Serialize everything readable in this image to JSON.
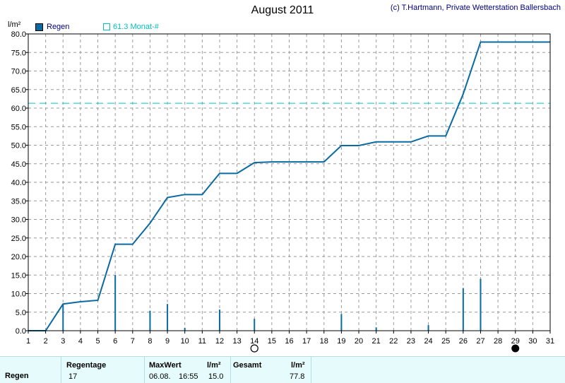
{
  "header": {
    "title": "August 2011",
    "credit": "(c) T.Hartmann, Private Wetterstation Ballersbach"
  },
  "legend": {
    "rain_label": "Regen",
    "avg_label": "61.3 Monat-#"
  },
  "colors": {
    "rain": "#0a6aa1",
    "average": "#00c8c8",
    "grid": "#9a9a9a"
  },
  "chart_data": {
    "type": "bar",
    "title": "August 2011",
    "ylabel": "l/m²",
    "xlabel": "",
    "ylim": [
      0,
      80
    ],
    "yticks": [
      "0.0",
      "5.0",
      "10.0",
      "15.0",
      "20.0",
      "25.0",
      "30.0",
      "35.0",
      "40.0",
      "45.0",
      "50.0",
      "55.0",
      "60.0",
      "65.0",
      "70.0",
      "75.0",
      "80.0"
    ],
    "x_ticks": [
      "1",
      "2",
      "3",
      "4",
      "5",
      "6",
      "7",
      "8",
      "9",
      "10",
      "11",
      "12",
      "13",
      "14",
      "15",
      "16",
      "17",
      "18",
      "19",
      "20",
      "21",
      "22",
      "23",
      "24",
      "25",
      "26",
      "27",
      "28",
      "29",
      "30",
      "31"
    ],
    "grid": true,
    "daily_rain": {
      "name": "Regen",
      "days": [
        3,
        6,
        8,
        9,
        10,
        12,
        14,
        19,
        21,
        24,
        26,
        27
      ],
      "values": [
        7.2,
        15.0,
        5.4,
        7.2,
        0.8,
        5.7,
        3.2,
        4.5,
        0.9,
        1.5,
        11.5,
        14.0
      ]
    },
    "cumulative": {
      "x": [
        1,
        2,
        3,
        4,
        5,
        6,
        7,
        8,
        9,
        10,
        11,
        12,
        13,
        14,
        15,
        16,
        17,
        18,
        19,
        20,
        21,
        22,
        23,
        24,
        25,
        26,
        27,
        28,
        29,
        30,
        31
      ],
      "values": [
        0,
        0,
        7.2,
        7.8,
        8.2,
        23.3,
        23.3,
        29.0,
        35.9,
        36.7,
        36.7,
        42.4,
        42.4,
        45.3,
        45.5,
        45.5,
        45.5,
        45.5,
        49.9,
        49.9,
        50.9,
        50.9,
        50.9,
        52.5,
        52.5,
        63.8,
        77.8,
        77.8,
        77.8,
        77.8,
        77.8
      ]
    },
    "average_line": {
      "name": "61.3 Monat-#",
      "value": 61.3
    },
    "moon_phases": [
      {
        "day": 14,
        "phase": "full"
      },
      {
        "day": 29,
        "phase": "new"
      }
    ]
  },
  "stats": {
    "row_label": "Regen",
    "regentage_label": "Regentage",
    "regentage_value": "17",
    "maxwert_label": "MaxWert",
    "maxwert_unit": "l/m²",
    "maxwert_date": "06.08.",
    "maxwert_time": "16:55",
    "maxwert_value": "15.0",
    "gesamt_label": "Gesamt",
    "gesamt_unit": "l/m²",
    "gesamt_value": "77.8"
  }
}
